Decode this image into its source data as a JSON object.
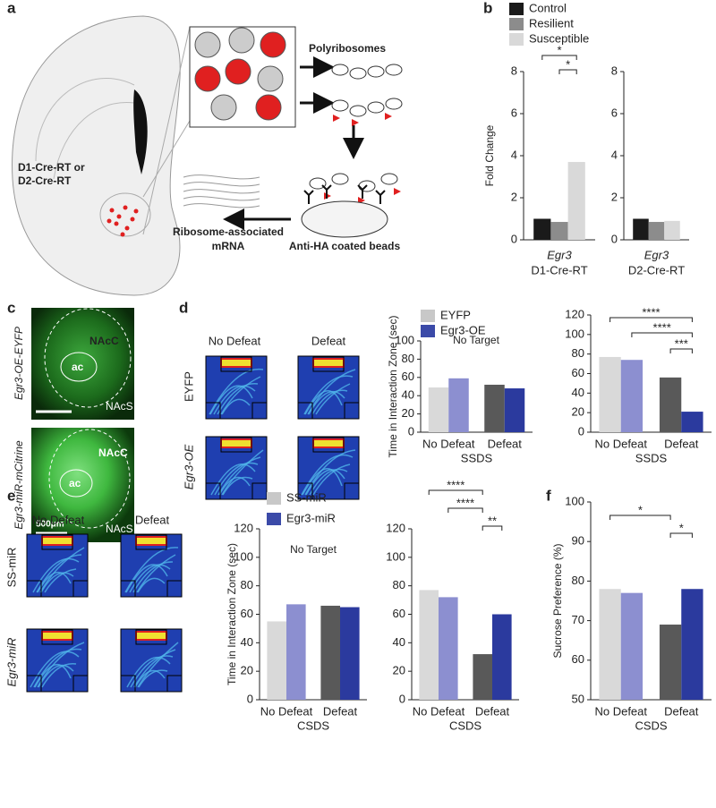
{
  "panels": {
    "labels": [
      "a",
      "b",
      "c",
      "d",
      "e",
      "f"
    ]
  },
  "diagram": {
    "mouse_line": [
      "D1-Cre-RT or",
      "D2-Cre-RT"
    ],
    "polyribosomes": "Polyribosomes",
    "mrna": [
      "Ribosome-associated",
      "mRNA"
    ],
    "beads": "Anti-HA coated beads"
  },
  "histology": {
    "top_label": "Egr3-OE-EYFP",
    "bottom_label": "Egr3-miR-mCitrine",
    "regions": [
      "NAcC",
      "ac",
      "NAcS"
    ],
    "scale": "500μm"
  },
  "heatmaps_d": {
    "columns": [
      "No Defeat",
      "Defeat"
    ],
    "rows": [
      "EYFP",
      "Egr3-OE"
    ]
  },
  "heatmaps_e": {
    "columns": [
      "No Defeat",
      "Defeat"
    ],
    "rows": [
      "SS-miR",
      "Egr3-miR"
    ]
  },
  "chart_data": [
    {
      "type": "bar",
      "ylabel": "Fold Change",
      "categories": [
        "Egr3"
      ],
      "xlabel": "D1-Cre-RT",
      "series": [
        {
          "name": "Control",
          "color": "#1a1a1a",
          "values": [
            1.0
          ]
        },
        {
          "name": "Resilient",
          "color": "#8c8c8c",
          "values": [
            0.85
          ]
        },
        {
          "name": "Susceptible",
          "color": "#d9d9d9",
          "values": [
            3.7
          ]
        }
      ],
      "ylim": [
        0,
        8
      ],
      "yticks": [
        0,
        2,
        4,
        6,
        8
      ],
      "annotations": [
        "*",
        "*"
      ]
    },
    {
      "type": "bar",
      "categories": [
        "Egr3"
      ],
      "xlabel": "D2-Cre-RT",
      "series": [
        {
          "color": "#1a1a1a",
          "values": [
            1.0
          ]
        },
        {
          "color": "#8c8c8c",
          "values": [
            0.85
          ]
        },
        {
          "color": "#d9d9d9",
          "values": [
            0.9
          ]
        }
      ],
      "ylim": [
        0,
        8
      ],
      "yticks": [
        0,
        2,
        4,
        6,
        8
      ]
    },
    {
      "type": "bar",
      "title": "No Target",
      "ylabel": "Time in Interaction Zone (sec)",
      "categories": [
        "No Defeat",
        "Defeat"
      ],
      "xlabel": "SSDS",
      "series": [
        {
          "name": "EYFP",
          "legend_color": "#c8c8c8",
          "color": [
            "#d9d9d9",
            "#595959"
          ],
          "values": [
            49,
            52
          ]
        },
        {
          "name": "Egr3-OE",
          "legend_color": "#3b4aa8",
          "color": [
            "#8c8fd0",
            "#2b3a9e"
          ],
          "values": [
            59,
            48
          ]
        }
      ],
      "ylim": [
        0,
        100
      ],
      "yticks": [
        0,
        20,
        40,
        60,
        80,
        100
      ]
    },
    {
      "type": "bar",
      "categories": [
        "No Defeat",
        "Defeat"
      ],
      "xlabel": "SSDS",
      "series": [
        {
          "color": [
            "#d9d9d9",
            "#595959"
          ],
          "values": [
            77,
            56
          ]
        },
        {
          "color": [
            "#8c8fd0",
            "#2b3a9e"
          ],
          "values": [
            74,
            21
          ]
        }
      ],
      "ylim": [
        0,
        120
      ],
      "yticks": [
        0,
        20,
        40,
        60,
        80,
        100,
        120
      ],
      "annotations": [
        "****",
        "****",
        "***"
      ]
    },
    {
      "type": "bar",
      "title": "No Target",
      "ylabel": "Time in Interaction Zone (sec)",
      "categories": [
        "No Defeat",
        "Defeat"
      ],
      "xlabel": "CSDS",
      "series": [
        {
          "name": "SS-miR",
          "legend_color": "#c8c8c8",
          "color": [
            "#d9d9d9",
            "#595959"
          ],
          "values": [
            55,
            66
          ]
        },
        {
          "name": "Egr3-miR",
          "legend_color": "#3b4aa8",
          "color": [
            "#8c8fd0",
            "#2b3a9e"
          ],
          "values": [
            67,
            65
          ]
        }
      ],
      "ylim": [
        0,
        120
      ],
      "yticks": [
        0,
        20,
        40,
        60,
        80,
        100,
        120
      ]
    },
    {
      "type": "bar",
      "categories": [
        "No Defeat",
        "Defeat"
      ],
      "xlabel": "CSDS",
      "series": [
        {
          "color": [
            "#d9d9d9",
            "#595959"
          ],
          "values": [
            77,
            32
          ]
        },
        {
          "color": [
            "#8c8fd0",
            "#2b3a9e"
          ],
          "values": [
            72,
            60
          ]
        }
      ],
      "ylim": [
        0,
        120
      ],
      "yticks": [
        0,
        20,
        40,
        60,
        80,
        100,
        120
      ],
      "annotations": [
        "****",
        "****",
        "**"
      ]
    },
    {
      "type": "bar",
      "ylabel": "Sucrose Preference (%)",
      "categories": [
        "No Defeat",
        "Defeat"
      ],
      "xlabel": "CSDS",
      "series": [
        {
          "color": [
            "#d9d9d9",
            "#595959"
          ],
          "values": [
            78,
            69
          ]
        },
        {
          "color": [
            "#8c8fd0",
            "#2b3a9e"
          ],
          "values": [
            77,
            78
          ]
        }
      ],
      "ylim": [
        50,
        100
      ],
      "yticks": [
        50,
        60,
        70,
        80,
        90,
        100
      ],
      "annotations": [
        "*",
        "*"
      ]
    }
  ]
}
